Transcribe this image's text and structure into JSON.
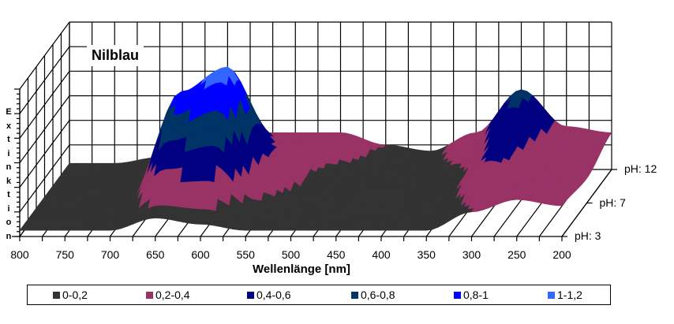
{
  "chart_data": {
    "type": "surface",
    "title": "Nilblau",
    "xlabel": "Wellenlänge [nm]",
    "ylabel": "Extinktion",
    "x_ticks": [
      "800",
      "750",
      "700",
      "650",
      "600",
      "550",
      "500",
      "450",
      "400",
      "350",
      "300",
      "250",
      "200"
    ],
    "depth_labels": [
      "pH: 3",
      "pH: 7",
      "pH: 12"
    ],
    "zlim": [
      0,
      1.2
    ],
    "grid": true,
    "legend_position": "bottom",
    "x": [
      800,
      750,
      700,
      650,
      600,
      550,
      500,
      450,
      400,
      350,
      300,
      250,
      200
    ],
    "series": [
      {
        "name": "pH: 3",
        "values": [
          0.05,
          0.05,
          0.05,
          0.15,
          0.1,
          0.05,
          0.05,
          0.05,
          0.05,
          0.05,
          0.2,
          0.3,
          0.25
        ]
      },
      {
        "name": "pH: 7",
        "values": [
          0.05,
          0.05,
          0.1,
          0.9,
          1.1,
          0.4,
          0.15,
          0.1,
          0.1,
          0.15,
          0.45,
          0.3,
          0.2
        ]
      },
      {
        "name": "pH: 12",
        "values": [
          0.05,
          0.05,
          0.1,
          0.2,
          0.3,
          0.3,
          0.3,
          0.2,
          0.15,
          0.3,
          0.65,
          0.35,
          0.3
        ]
      }
    ],
    "legend": [
      {
        "label": "0-0,2",
        "color": "#333333"
      },
      {
        "label": "0,2-0,4",
        "color": "#993366"
      },
      {
        "label": "0,4-0,6",
        "color": "#000080"
      },
      {
        "label": "0,6-0,8",
        "color": "#003366"
      },
      {
        "label": "0,8-1",
        "color": "#0000ff"
      },
      {
        "label": "1-1,2",
        "color": "#3366ff"
      }
    ]
  }
}
